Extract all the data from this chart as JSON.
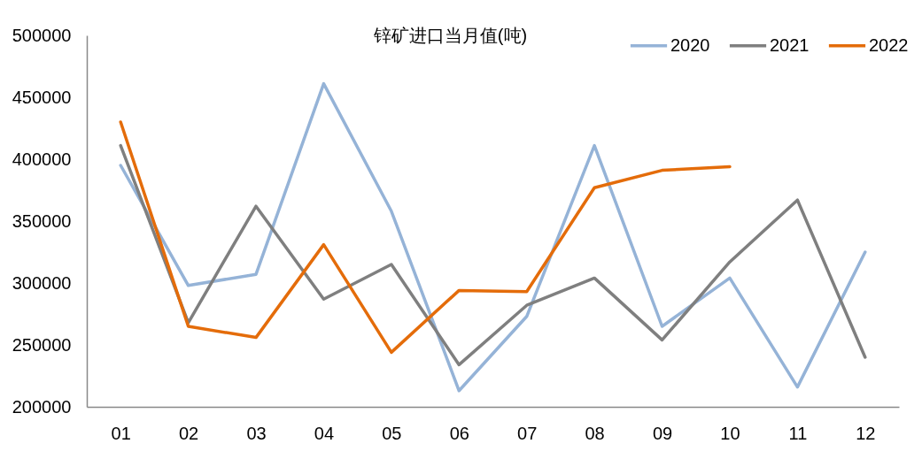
{
  "chart_data": {
    "type": "line",
    "title": "锌矿进口当月值(吨)",
    "categories": [
      "01",
      "02",
      "03",
      "04",
      "05",
      "06",
      "07",
      "08",
      "09",
      "10",
      "11",
      "12"
    ],
    "series": [
      {
        "name": "2020",
        "color": "#95b3d7",
        "values": [
          395000,
          298000,
          307000,
          461000,
          358000,
          213000,
          273000,
          411000,
          265000,
          304000,
          216000,
          325000
        ]
      },
      {
        "name": "2021",
        "color": "#7f7f7f",
        "values": [
          411000,
          268000,
          362000,
          287000,
          315000,
          234000,
          282000,
          304000,
          254000,
          317000,
          367000,
          240000
        ]
      },
      {
        "name": "2022",
        "color": "#e46c0a",
        "values": [
          430000,
          265000,
          256000,
          331000,
          244000,
          294000,
          293000,
          377000,
          391000,
          394000,
          null,
          null
        ]
      }
    ],
    "ylim": [
      200000,
      500000
    ],
    "yticks": [
      200000,
      250000,
      300000,
      350000,
      400000,
      450000,
      500000
    ],
    "legend": "top right"
  }
}
